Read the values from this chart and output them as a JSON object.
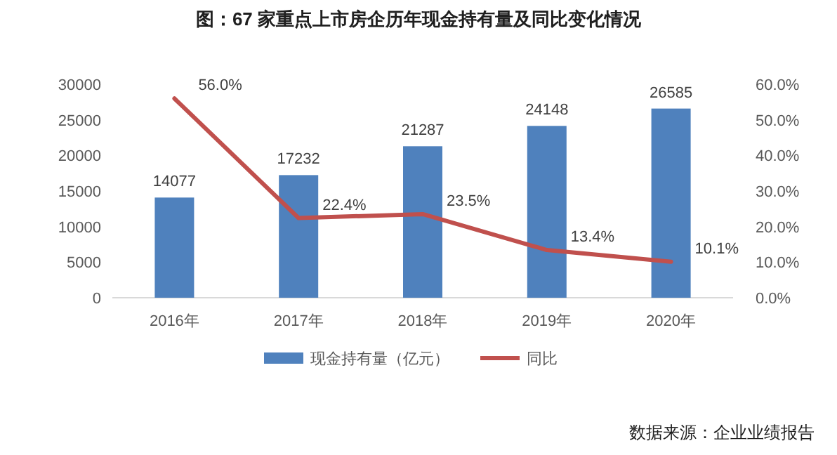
{
  "chart_data": {
    "type": "bar",
    "title": "图：67 家重点上市房企历年现金持有量及同比变化情况",
    "categories": [
      "2016年",
      "2017年",
      "2018年",
      "2019年",
      "2020年"
    ],
    "series": [
      {
        "name": "现金持有量（亿元）",
        "color": "#4f81bd",
        "values": [
          14077,
          17232,
          21287,
          24148,
          26585
        ],
        "data_labels": true
      },
      {
        "name": "同比",
        "type": "line",
        "axis": "y2",
        "color": "#c0504d",
        "values": [
          56.0,
          22.4,
          23.5,
          13.4,
          10.1
        ],
        "value_labels": [
          "56.0%",
          "22.4%",
          "23.5%",
          "13.4%",
          "10.1%"
        ]
      }
    ],
    "ylim": [
      0,
      30000
    ],
    "yticks": [
      0,
      5000,
      10000,
      15000,
      20000,
      25000,
      30000
    ],
    "y2lim": [
      0,
      60
    ],
    "y2ticks": [
      {
        "value": 0,
        "label": "0.0%"
      },
      {
        "value": 10,
        "label": "10.0%"
      },
      {
        "value": 20,
        "label": "20.0%"
      },
      {
        "value": 30,
        "label": "30.0%"
      },
      {
        "value": 40,
        "label": "40.0%"
      },
      {
        "value": 50,
        "label": "50.0%"
      },
      {
        "value": 60,
        "label": "60.0%"
      }
    ],
    "legend": "bottom",
    "grid": false,
    "marker": "none",
    "line_style": "solid",
    "annotations": [
      "数据来源：企业业绩报告"
    ]
  }
}
